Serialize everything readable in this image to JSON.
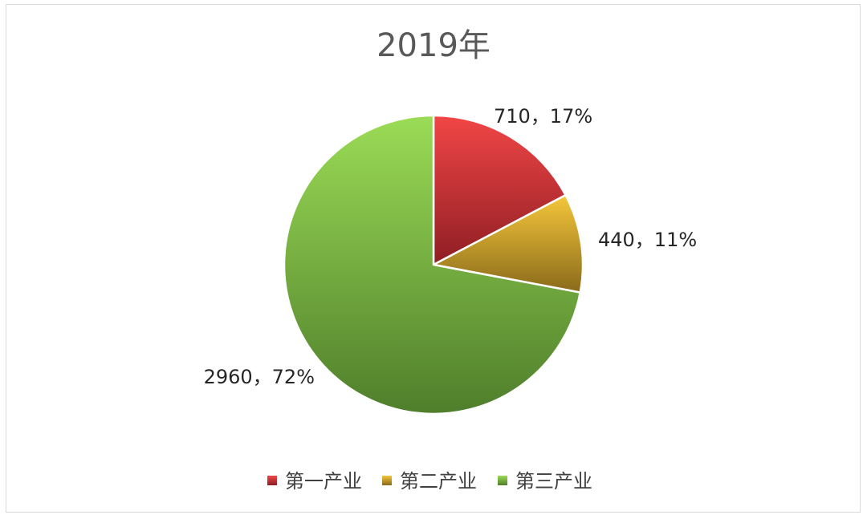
{
  "chart_data": {
    "type": "pie",
    "title": "2019年",
    "categories": [
      "第一产业",
      "第二产业",
      "第三产业"
    ],
    "values": [
      710,
      440,
      2960
    ],
    "percent_labels": [
      "17%",
      "11%",
      "72%"
    ],
    "data_labels": [
      "710，17%",
      "440，11%",
      "2960，72%"
    ],
    "legend_position": "bottom",
    "colors": [
      {
        "light": "#f24646",
        "dark": "#8e1e24"
      },
      {
        "light": "#f5c73b",
        "dark": "#8a6a1a"
      },
      {
        "light": "#9bdc56",
        "dark": "#4f7e2b"
      }
    ],
    "slice_border_color": "#ffffff"
  }
}
